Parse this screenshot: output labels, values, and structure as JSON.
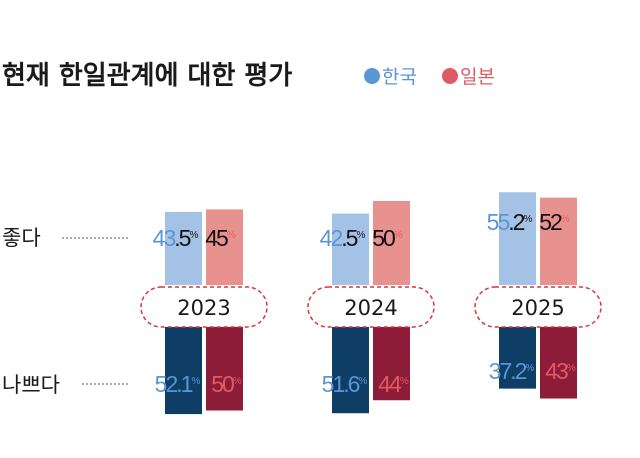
{
  "chart_data": {
    "type": "bar",
    "title": "현재 한일관계에 대한 평가",
    "legend": [
      {
        "name": "한국",
        "color": "#5a95d4"
      },
      {
        "name": "일본",
        "color": "#e05a64"
      }
    ],
    "row_labels": {
      "good": "좋다",
      "bad": "나쁘다"
    },
    "categories": [
      "2023",
      "2024",
      "2025"
    ],
    "unit": "%",
    "series": {
      "good": [
        {
          "name": "한국",
          "values": [
            43.5,
            42.5,
            55.2
          ]
        },
        {
          "name": "일본",
          "values": [
            45,
            50,
            52
          ]
        }
      ],
      "bad": [
        {
          "name": "한국",
          "values": [
            52.1,
            51.6,
            37.2
          ]
        },
        {
          "name": "일본",
          "values": [
            50,
            44,
            43
          ]
        }
      ]
    },
    "colors": {
      "good_korea": "#a3c2e6",
      "good_japan": "#e89290",
      "bad_korea": "#0e3d66",
      "bad_japan": "#8c1c37",
      "korea_text": "#5a95d4",
      "japan_text": "#e05a64",
      "year_box_border": "#d9363e"
    }
  }
}
